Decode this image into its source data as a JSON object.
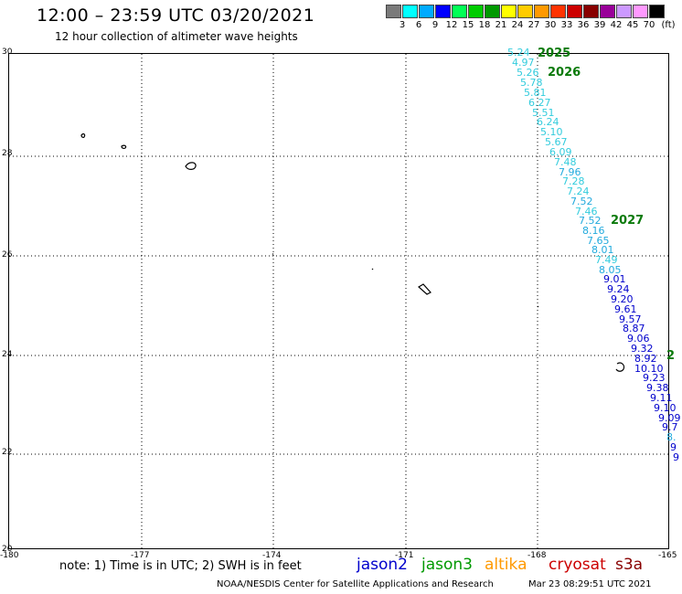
{
  "header": {
    "title": "12:00 – 23:59 UTC 03/20/2021",
    "subtitle": "12 hour collection of altimeter wave heights"
  },
  "colorbar": {
    "colors": [
      "#7a7a7a",
      "#00ffff",
      "#00aaff",
      "#0000ff",
      "#00ff55",
      "#00cc00",
      "#009900",
      "#ffff00",
      "#ffcc00",
      "#ff9900",
      "#ff3300",
      "#cc0000",
      "#880000",
      "#990099",
      "#cc99ff",
      "#ff99ff",
      "#000000"
    ],
    "labels": [
      "3",
      "6",
      "9",
      "12",
      "15",
      "18",
      "21",
      "24",
      "27",
      "30",
      "33",
      "36",
      "39",
      "42",
      "45",
      "70"
    ],
    "unit": "(ft)"
  },
  "axes": {
    "y_labels": [
      "30",
      "28",
      "26",
      "24",
      "22",
      "20"
    ],
    "x_labels": [
      "-180",
      "-177",
      "-174",
      "-171",
      "-168",
      "-165"
    ]
  },
  "passes": [
    {
      "label": "2025"
    },
    {
      "label": "2026"
    },
    {
      "label": "2027"
    },
    {
      "label": "2"
    }
  ],
  "track_values": [
    "5.24",
    "4.97",
    "5.26",
    "5.78",
    "5.81",
    "6.27",
    "5.51",
    "6.24",
    "5.10",
    "5.67",
    "6.09",
    "7.48",
    "7.96",
    "7.28",
    "7.24",
    "7.52",
    "7.46",
    "7.52",
    "8.16",
    "7.65",
    "8.01",
    "7.49",
    "8.05",
    "9.01",
    "9.24",
    "9.20",
    "9.61",
    "9.57",
    "8.87",
    "9.06",
    "9.32",
    "8.92",
    "10.10",
    "9.23",
    "9.38",
    "9.11",
    "9.10",
    "9.09",
    "9.7",
    "8.",
    "9",
    "9"
  ],
  "legend": {
    "note": "note:  1) Time is in UTC;  2) SWH is in feet",
    "items": [
      {
        "label": "jason2",
        "color": "#0000cc"
      },
      {
        "label": "jason3",
        "color": "#009900"
      },
      {
        "label": "altika",
        "color": "#ff9900"
      },
      {
        "label": "cryosat",
        "color": "#cc0000"
      },
      {
        "label": "s3a",
        "color": "#880000"
      }
    ]
  },
  "footer": {
    "credit": "NOAA/NESDIS Center for Satellite Applications and Research",
    "timestamp": "Mar 23 08:29:51 UTC 2021"
  }
}
